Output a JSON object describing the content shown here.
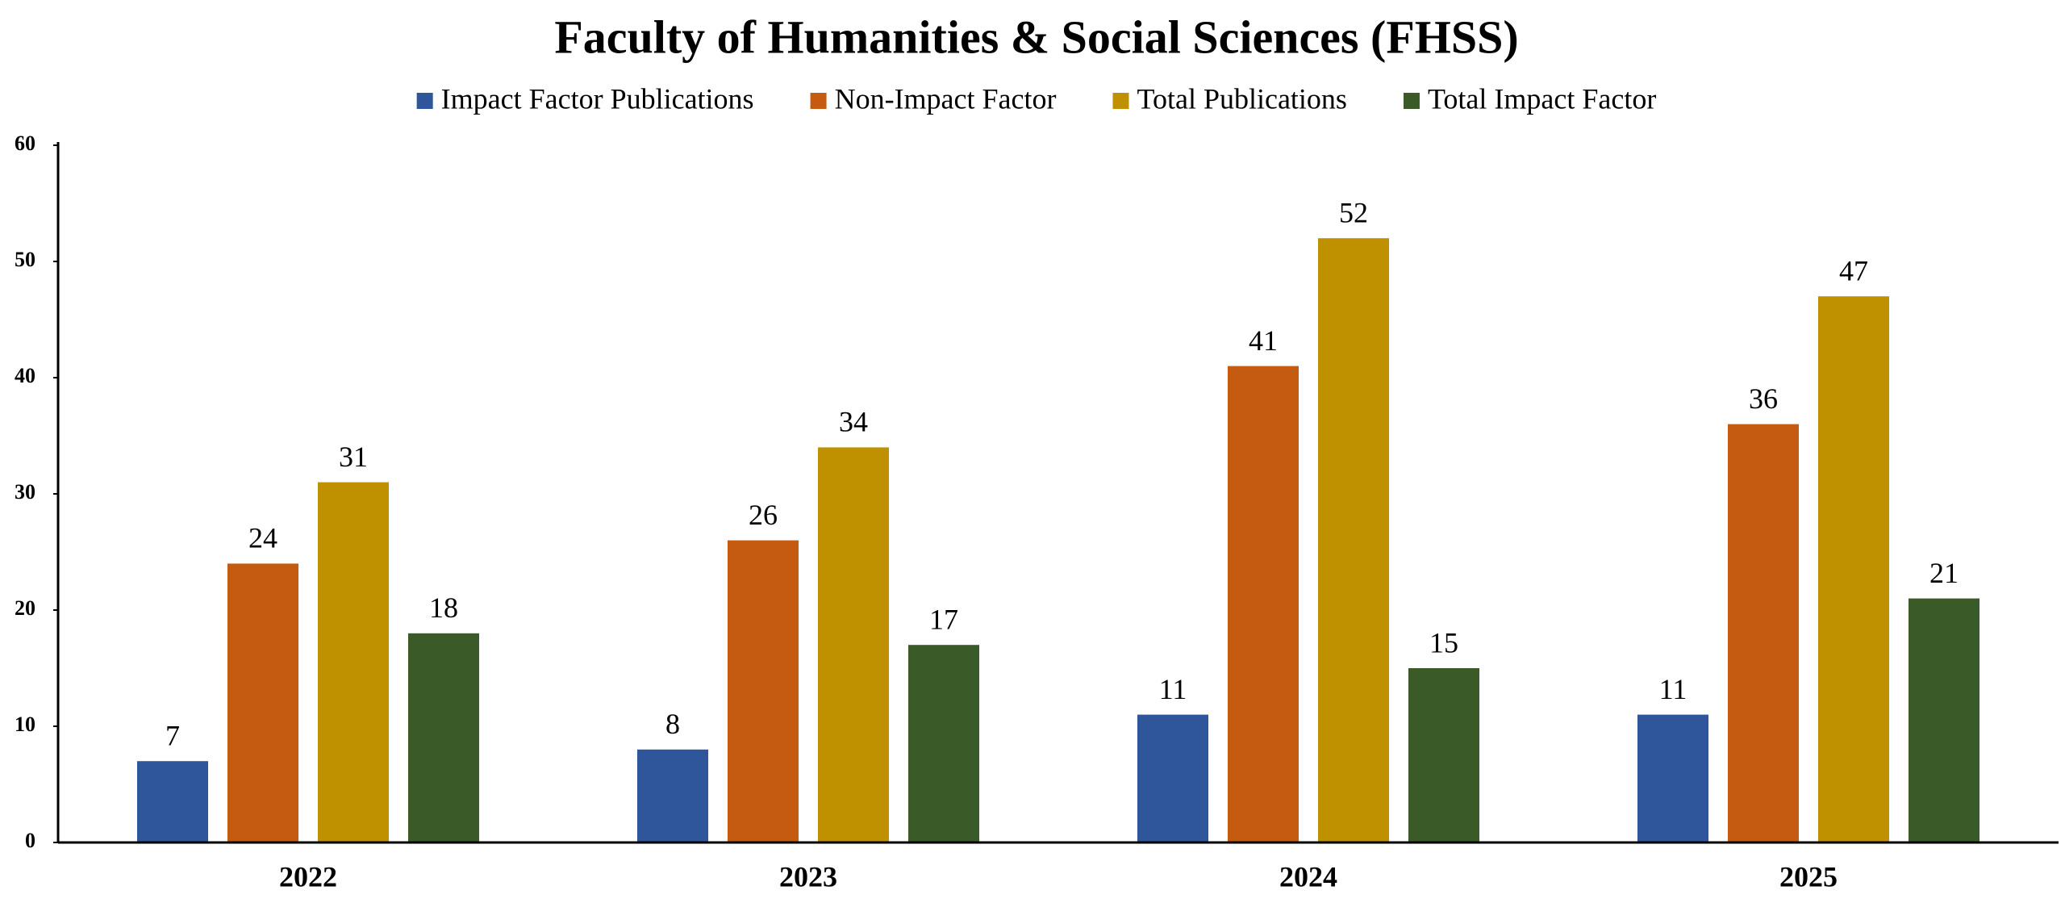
{
  "chart_data": {
    "type": "bar",
    "title": "Faculty of Humanities & Social Sciences  (FHSS)",
    "categories": [
      "2022",
      "2023",
      "2024",
      "2025"
    ],
    "series": [
      {
        "name": "Impact Factor Publications",
        "color": "#2f569a",
        "values": [
          7,
          8,
          11,
          11
        ]
      },
      {
        "name": "Non-Impact Factor",
        "color": "#c55a11",
        "values": [
          24,
          26,
          41,
          36
        ]
      },
      {
        "name": "Total Publications",
        "color": "#bf9000",
        "values": [
          31,
          34,
          52,
          47
        ]
      },
      {
        "name": "Total Impact Factor",
        "color": "#3a5a27",
        "values": [
          18,
          17,
          15,
          21
        ]
      }
    ],
    "ylim": [
      0,
      60
    ],
    "yticks": [
      0,
      10,
      20,
      30,
      40,
      50,
      60
    ],
    "grid": false,
    "legend": "top"
  }
}
